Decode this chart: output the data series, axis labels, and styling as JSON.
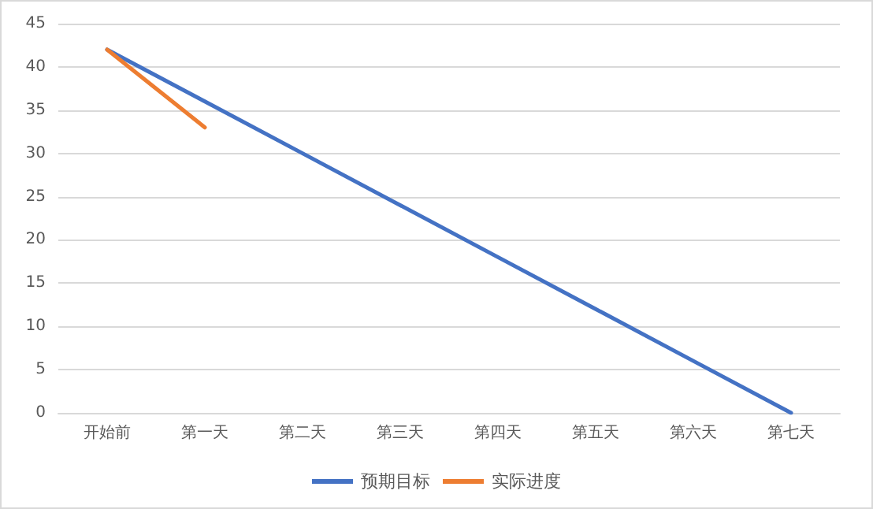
{
  "chart_data": {
    "type": "line",
    "categories": [
      "开始前",
      "第一天",
      "第二天",
      "第三天",
      "第四天",
      "第五天",
      "第六天",
      "第七天"
    ],
    "series": [
      {
        "name": "预期目标",
        "color": "#4472c4",
        "values": [
          42,
          36,
          30,
          24,
          18,
          12,
          6,
          0
        ]
      },
      {
        "name": "实际进度",
        "color": "#ed7d31",
        "values": [
          42,
          33,
          null,
          null,
          null,
          null,
          null,
          null
        ]
      }
    ],
    "ylim": [
      0,
      45
    ],
    "yticks": [
      0,
      5,
      10,
      15,
      20,
      25,
      30,
      35,
      40,
      45
    ],
    "grid": "y",
    "legend": "bottom",
    "marker": "none",
    "line_style": "solid"
  }
}
